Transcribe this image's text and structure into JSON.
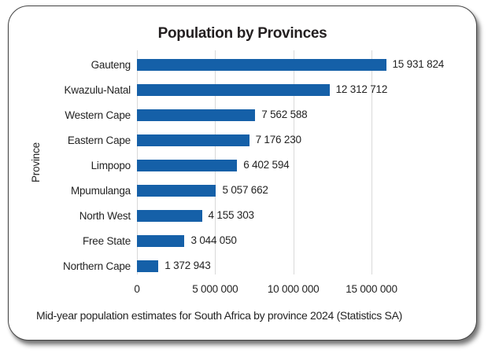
{
  "chart_data": {
    "type": "bar",
    "orientation": "horizontal",
    "title": "Population by Provinces",
    "ylabel": "Province",
    "xlabel": "",
    "categories": [
      "Gauteng",
      "Kwazulu-Natal",
      "Western Cape",
      "Eastern Cape",
      "Limpopo",
      "Mpumulanga",
      "North West",
      "Free State",
      "Northern Cape"
    ],
    "values": [
      15931824,
      12312712,
      7562588,
      7176230,
      6402594,
      5057662,
      4155303,
      3044050,
      1372943
    ],
    "value_labels": [
      "15 931 824",
      "12 312 712",
      "7 562 588",
      "7 176 230",
      "6 402 594",
      "5 057 662",
      "4 155 303",
      "3 044 050",
      "1 372 943"
    ],
    "x_ticks": [
      {
        "value": 0,
        "label": "0"
      },
      {
        "value": 5000000,
        "label": "5 000 000"
      },
      {
        "value": 10000000,
        "label": "10 000 000"
      },
      {
        "value": 15000000,
        "label": "15 000 000"
      }
    ],
    "xlim": [
      0,
      20000000
    ],
    "grid": true,
    "legend": "none",
    "bar_color": "#1560a8",
    "gridline_color": "#d9d9d9",
    "text_color": "#232323",
    "caption": "Mid-year population estimates for South Africa by province 2024 (Statistics SA)"
  }
}
